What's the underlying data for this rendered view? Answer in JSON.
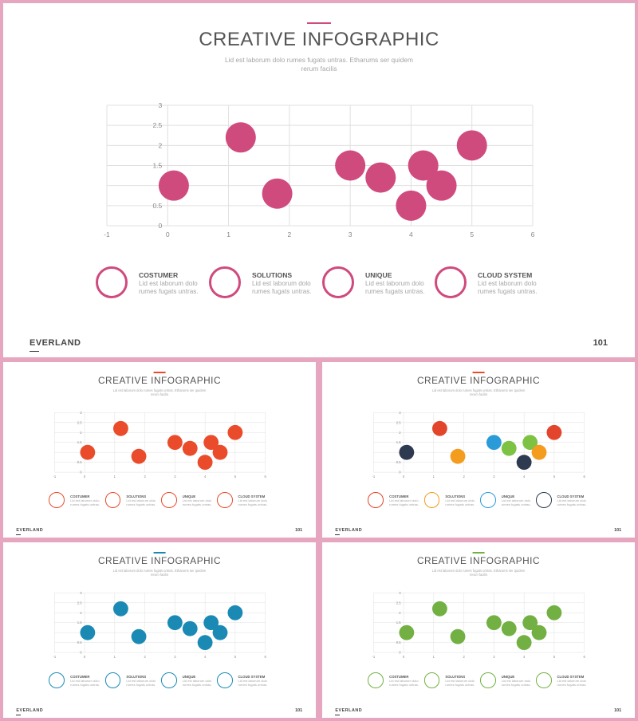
{
  "slides": [
    {
      "title": "CREATIVE INFOGRAPHIC",
      "subtitle": "Lid est laborum dolo rumes fugats untras. Etharums ser quidem rerum facilis",
      "brand": "EVERLAND",
      "page_number": "101",
      "accent_color": "#cf4a7d",
      "bubble_colors": [
        "#cf4a7d",
        "#cf4a7d",
        "#cf4a7d",
        "#cf4a7d",
        "#cf4a7d",
        "#cf4a7d",
        "#cf4a7d",
        "#cf4a7d",
        "#cf4a7d"
      ],
      "legend": [
        {
          "title": "COSTUMER",
          "desc": "Lid est laborum dolo rumes fugats untras.",
          "color": "#cf4a7d"
        },
        {
          "title": "SOLUTIONS",
          "desc": "Lid est laborum dolo rumes fugats untras.",
          "color": "#cf4a7d"
        },
        {
          "title": "UNIQUE",
          "desc": "Lid est laborum dolo rumes fugats untras.",
          "color": "#cf4a7d"
        },
        {
          "title": "CLOUD SYSTEM",
          "desc": "Lid est laborum dolo rumes fugats untras.",
          "color": "#cf4a7d"
        }
      ]
    },
    {
      "title": "CREATIVE INFOGRAPHIC",
      "subtitle": "Lid est laborum dolo rumes fugats untras. Etharums ser quidem rerum facilis",
      "brand": "EVERLAND",
      "page_number": "101",
      "accent_color": "#ea4b2a",
      "bubble_colors": [
        "#ea4b2a",
        "#ea4b2a",
        "#ea4b2a",
        "#ea4b2a",
        "#ea4b2a",
        "#ea4b2a",
        "#ea4b2a",
        "#ea4b2a",
        "#ea4b2a"
      ],
      "legend": [
        {
          "title": "COSTUMER",
          "desc": "Lid est laborum dolo rumes fugats untras.",
          "color": "#ea4b2a"
        },
        {
          "title": "SOLUTIONS",
          "desc": "Lid est laborum dolo rumes fugats untras.",
          "color": "#ea4b2a"
        },
        {
          "title": "UNIQUE",
          "desc": "Lid est laborum dolo rumes fugats untras.",
          "color": "#ea4b2a"
        },
        {
          "title": "CLOUD SYSTEM",
          "desc": "Lid est laborum dolo rumes fugats untras.",
          "color": "#ea4b2a"
        }
      ]
    },
    {
      "title": "CREATIVE INFOGRAPHIC",
      "subtitle": "Lid est laborum dolo rumes fugats untras. Etharums ser quidem rerum facilis",
      "brand": "EVERLAND",
      "page_number": "101",
      "accent_color": "#ea4b2a",
      "bubble_colors": [
        "#2e3a4f",
        "#e2452b",
        "#f39c1d",
        "#2a9bd8",
        "#7dc242",
        "#2e3a4f",
        "#7dc242",
        "#f39c1d",
        "#e2452b"
      ],
      "legend": [
        {
          "title": "COSTUMER",
          "desc": "Lid est laborum dolo rumes fugats untras.",
          "color": "#e2452b"
        },
        {
          "title": "SOLUTIONS",
          "desc": "Lid est laborum dolo rumes fugats untras.",
          "color": "#f39c1d"
        },
        {
          "title": "UNIQUE",
          "desc": "Lid est laborum dolo rumes fugats untras.",
          "color": "#2a9bd8"
        },
        {
          "title": "CLOUD SYSTEM",
          "desc": "Lid est laborum dolo rumes fugats untras.",
          "color": "#2e3a4f"
        }
      ]
    },
    {
      "title": "CREATIVE INFOGRAPHIC",
      "subtitle": "Lid est laborum dolo rumes fugats untras. Etharums ser quidem rerum facilis",
      "brand": "EVERLAND",
      "page_number": "101",
      "accent_color": "#1a8ab5",
      "bubble_colors": [
        "#1a8ab5",
        "#1a8ab5",
        "#1a8ab5",
        "#1a8ab5",
        "#1a8ab5",
        "#1a8ab5",
        "#1a8ab5",
        "#1a8ab5",
        "#1a8ab5"
      ],
      "legend": [
        {
          "title": "COSTUMER",
          "desc": "Lid est laborum dolo rumes fugats untras.",
          "color": "#1a8ab5"
        },
        {
          "title": "SOLUTIONS",
          "desc": "Lid est laborum dolo rumes fugats untras.",
          "color": "#1a8ab5"
        },
        {
          "title": "UNIQUE",
          "desc": "Lid est laborum dolo rumes fugats untras.",
          "color": "#1a8ab5"
        },
        {
          "title": "CLOUD SYSTEM",
          "desc": "Lid est laborum dolo rumes fugats untras.",
          "color": "#1a8ab5"
        }
      ]
    },
    {
      "title": "CREATIVE INFOGRAPHIC",
      "subtitle": "Lid est laborum dolo rumes fugats untras. Etharums ser quidem rerum facilis",
      "brand": "EVERLAND",
      "page_number": "101",
      "accent_color": "#72b043",
      "bubble_colors": [
        "#72b043",
        "#72b043",
        "#72b043",
        "#72b043",
        "#72b043",
        "#72b043",
        "#72b043",
        "#72b043",
        "#72b043"
      ],
      "legend": [
        {
          "title": "COSTUMER",
          "desc": "Lid est laborum dolo rumes fugats untras.",
          "color": "#72b043"
        },
        {
          "title": "SOLUTIONS",
          "desc": "Lid est laborum dolo rumes fugats untras.",
          "color": "#72b043"
        },
        {
          "title": "UNIQUE",
          "desc": "Lid est laborum dolo rumes fugats untras.",
          "color": "#72b043"
        },
        {
          "title": "CLOUD SYSTEM",
          "desc": "Lid est laborum dolo rumes fugats untras.",
          "color": "#72b043"
        }
      ]
    }
  ],
  "chart_data": {
    "type": "scatter",
    "title": "",
    "xlabel": "",
    "ylabel": "",
    "xlim": [
      -1,
      6
    ],
    "ylim": [
      0,
      3
    ],
    "x_ticks": [
      "-1",
      "0",
      "1",
      "2",
      "3",
      "4",
      "5",
      "6"
    ],
    "y_ticks": [
      "0",
      "0.5",
      "1",
      "1.5",
      "2",
      "2.5",
      "3"
    ],
    "grid": true,
    "x": [
      0.1,
      1.2,
      1.8,
      3.0,
      3.5,
      4.0,
      4.2,
      4.5,
      5.0
    ],
    "y": [
      1.0,
      2.2,
      0.8,
      1.5,
      1.2,
      0.5,
      1.5,
      1.0,
      2.0
    ]
  }
}
